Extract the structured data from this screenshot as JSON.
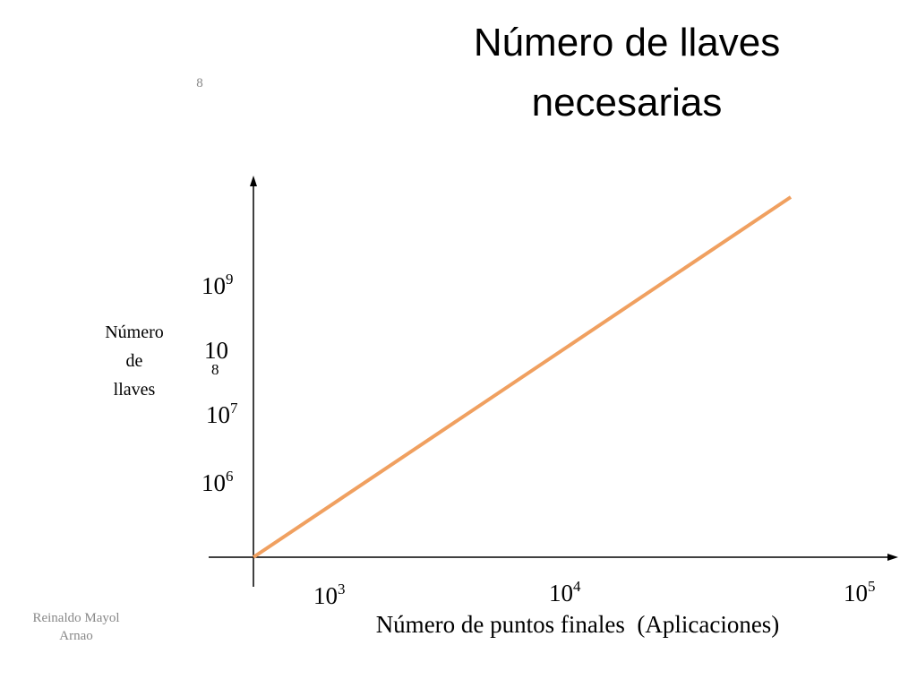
{
  "title": [
    "Número de llaves",
    "necesarias"
  ],
  "stray_mark": "8",
  "y_axis": {
    "label": [
      "Número",
      "de",
      "llaves"
    ],
    "ticks": [
      {
        "base": "10",
        "exp": "9"
      },
      {
        "base": "10",
        "exp": "8"
      },
      {
        "base": "10",
        "exp": "7"
      },
      {
        "base": "10",
        "exp": "6"
      }
    ]
  },
  "x_axis": {
    "label": "Número de puntos finales  (Aplicaciones)",
    "ticks": [
      {
        "base": "10",
        "exp": "3"
      },
      {
        "base": "10",
        "exp": "4"
      },
      {
        "base": "10",
        "exp": "5"
      }
    ]
  },
  "footer": [
    "Reinaldo Mayol",
    "Arnao"
  ]
}
